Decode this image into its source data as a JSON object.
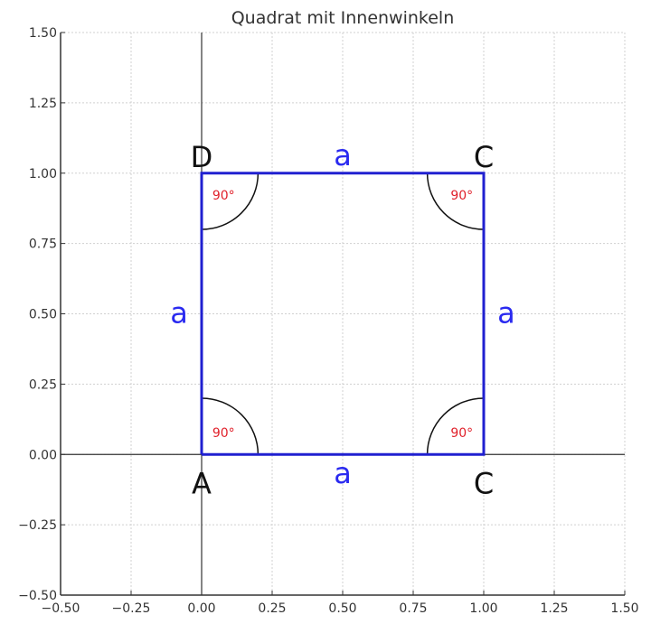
{
  "chart_data": {
    "type": "line",
    "title": "Quadrat mit Innenwinkeln",
    "xlabel": "",
    "ylabel": "",
    "xlim": [
      -0.5,
      1.5
    ],
    "ylim": [
      -0.5,
      1.5
    ],
    "grid": true,
    "x_ticks": [
      "−0.50",
      "−0.25",
      "0.00",
      "0.25",
      "0.50",
      "0.75",
      "1.00",
      "1.25",
      "1.50"
    ],
    "y_ticks": [
      "−0.50",
      "−0.25",
      "0.00",
      "0.25",
      "0.50",
      "0.75",
      "1.00",
      "1.25",
      "1.50"
    ],
    "x_tick_values": [
      -0.5,
      -0.25,
      0,
      0.25,
      0.5,
      0.75,
      1,
      1.25,
      1.5
    ],
    "y_tick_values": [
      -0.5,
      -0.25,
      0,
      0.25,
      0.5,
      0.75,
      1,
      1.25,
      1.5
    ],
    "square": {
      "x": [
        0,
        1,
        1,
        0,
        0
      ],
      "y": [
        0,
        0,
        1,
        1,
        0
      ],
      "color": "#2020d0"
    },
    "vertices": [
      {
        "label": "A",
        "x": 0,
        "y": 0
      },
      {
        "label": "C",
        "x": 1,
        "y": 0
      },
      {
        "label": "C",
        "x": 1,
        "y": 1
      },
      {
        "label": "D",
        "x": 0,
        "y": 1
      }
    ],
    "side_labels": [
      {
        "label": "a",
        "x": 0.5,
        "y": -0.07
      },
      {
        "label": "a",
        "x": 1.08,
        "y": 0.5
      },
      {
        "label": "a",
        "x": 0.5,
        "y": 1.06
      },
      {
        "label": "a",
        "x": -0.08,
        "y": 0.5
      }
    ],
    "angles": [
      {
        "label": "90°",
        "x": 0,
        "y": 0,
        "start": 0,
        "end": 90,
        "radius": 0.2
      },
      {
        "label": "90°",
        "x": 1,
        "y": 0,
        "start": 90,
        "end": 180,
        "radius": 0.2
      },
      {
        "label": "90°",
        "x": 1,
        "y": 1,
        "start": 180,
        "end": 270,
        "radius": 0.2
      },
      {
        "label": "90°",
        "x": 0,
        "y": 1,
        "start": 270,
        "end": 360,
        "radius": 0.2
      }
    ],
    "label_color": "#2a2af0",
    "angle_label_color": "#e0202a"
  }
}
